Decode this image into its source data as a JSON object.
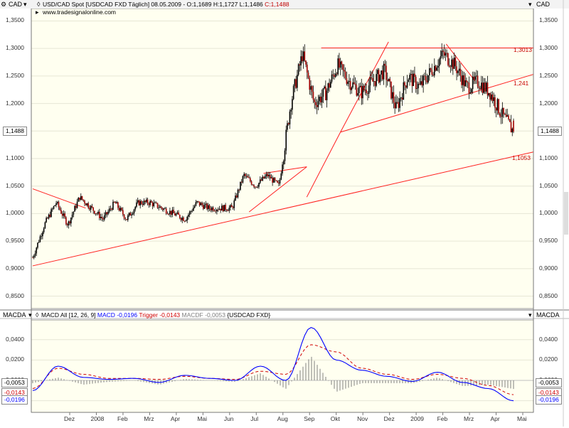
{
  "header": {
    "symbol_line_prefix": "USD/CAD Spot [USDCAD FXD  Täglich] 08.05.2009 - O:1,1689 H:1,1727 L:1,1486 ",
    "close_label": "C:1,1488",
    "watermark": "www.tradesignalonline.com",
    "axis_unit_left": "CAD",
    "axis_unit_right": "CAD",
    "macd_axis_left": "MACDA",
    "macd_axis_right": "MACDA",
    "macd_legend_prefix": "MACD All [12, 26, 9] ",
    "macd_label": "MACD -0,0196",
    "trigger_label": "Trigger -0,0143",
    "macdf_label": "MACDF -0,0053",
    "macd_legend_suffix": "{USDCAD FXD}"
  },
  "price_axis": {
    "ticks": [
      "1,3500",
      "1,3000",
      "1,2500",
      "1,2000",
      "1,1500",
      "1,1000",
      "1,0500",
      "1,0000",
      "0,9500",
      "0,9000",
      "0,8500"
    ],
    "current_tag": "1,1488"
  },
  "macd_axis": {
    "ticks": [
      "0,0400",
      "0,0200",
      "0,0000",
      "-0,0200"
    ],
    "tags_left": [
      "-0,0053",
      "-0,0143",
      "-0,0196"
    ],
    "tags_right": [
      "-0,0053",
      "-0,0143",
      "-0,0196"
    ]
  },
  "x_axis": {
    "labels": [
      "Dez",
      "2008",
      "Feb",
      "Mrz",
      "Apr",
      "Mai",
      "Jun",
      "Jul",
      "Aug",
      "Sep",
      "Okt",
      "Nov",
      "Dez",
      "2009",
      "Feb",
      "Mrz",
      "Apr",
      "Mai"
    ]
  },
  "levels": {
    "resistance": "1,3013",
    "trend_mid": "1,241",
    "trend_low": "1,1053"
  },
  "colors": {
    "chart_bg": "#fffff0",
    "candle_up": "#000000",
    "candle_down": "#a00000",
    "trendline": "#ff2020",
    "macd": "#0000ff",
    "trigger": "#d00000",
    "histogram": "#808080"
  },
  "chart_data": [
    {
      "type": "candlestick",
      "title": "USD/CAD Spot [USDCAD FXD  Täglich] 08.05.2009",
      "ylabel": "CAD",
      "ylim": [
        0.83,
        1.37
      ],
      "last": {
        "open": 1.1689,
        "high": 1.1727,
        "low": 1.1486,
        "close": 1.1488
      },
      "x": [
        "2007-11-01",
        "2007-11-15",
        "2007-12-01",
        "2007-12-15",
        "2008-01-01",
        "2008-01-15",
        "2008-02-01",
        "2008-02-15",
        "2008-03-01",
        "2008-03-15",
        "2008-04-01",
        "2008-04-15",
        "2008-05-01",
        "2008-05-15",
        "2008-06-01",
        "2008-06-15",
        "2008-07-01",
        "2008-07-15",
        "2008-08-01",
        "2008-08-15",
        "2008-09-01",
        "2008-09-15",
        "2008-10-01",
        "2008-10-10",
        "2008-10-20",
        "2008-11-01",
        "2008-11-10",
        "2008-11-20",
        "2008-12-01",
        "2008-12-10",
        "2008-12-20",
        "2009-01-01",
        "2009-01-15",
        "2009-02-01",
        "2009-02-15",
        "2009-03-01",
        "2009-03-10",
        "2009-03-20",
        "2009-04-01",
        "2009-04-15",
        "2009-05-01",
        "2009-05-08"
      ],
      "close": [
        0.92,
        0.98,
        1.02,
        0.98,
        1.03,
        1.01,
        0.99,
        1.02,
        0.99,
        1.02,
        1.02,
        1.01,
        1.0,
        0.99,
        1.02,
        1.01,
        1.01,
        1.01,
        1.07,
        1.05,
        1.07,
        1.05,
        1.2,
        1.29,
        1.2,
        1.22,
        1.27,
        1.24,
        1.22,
        1.24,
        1.26,
        1.19,
        1.25,
        1.23,
        1.26,
        1.29,
        1.27,
        1.23,
        1.24,
        1.22,
        1.18,
        1.1488
      ],
      "annotations": [
        "1,3013",
        "1,241",
        "1,1053"
      ]
    },
    {
      "type": "line",
      "title": "MACD All [12, 26, 9] {USDCAD FXD}",
      "ylim": [
        -0.03,
        0.058
      ],
      "series": [
        {
          "name": "MACD",
          "last": -0.0196
        },
        {
          "name": "Trigger",
          "last": -0.0143
        },
        {
          "name": "MACDF",
          "last": -0.0053
        }
      ],
      "x": [
        "2007-11",
        "2007-12",
        "2008-01",
        "2008-02",
        "2008-03",
        "2008-04",
        "2008-05",
        "2008-06",
        "2008-07",
        "2008-08",
        "2008-09",
        "2008-10",
        "2008-10b",
        "2008-11",
        "2008-12",
        "2009-01",
        "2009-02",
        "2009-03",
        "2009-04",
        "2009-05"
      ],
      "macd": [
        -0.01,
        0.014,
        0.003,
        0.001,
        0.002,
        -0.002,
        0.005,
        0.002,
        0.0,
        0.014,
        0.0,
        0.052,
        0.02,
        0.01,
        0.004,
        -0.001,
        0.008,
        -0.002,
        -0.008,
        -0.02
      ],
      "trigger": [
        -0.008,
        0.012,
        0.006,
        0.002,
        0.002,
        0.001,
        0.004,
        0.002,
        0.001,
        0.009,
        0.006,
        0.035,
        0.028,
        0.012,
        0.006,
        0.001,
        0.006,
        0.002,
        -0.005,
        -0.014
      ]
    }
  ]
}
